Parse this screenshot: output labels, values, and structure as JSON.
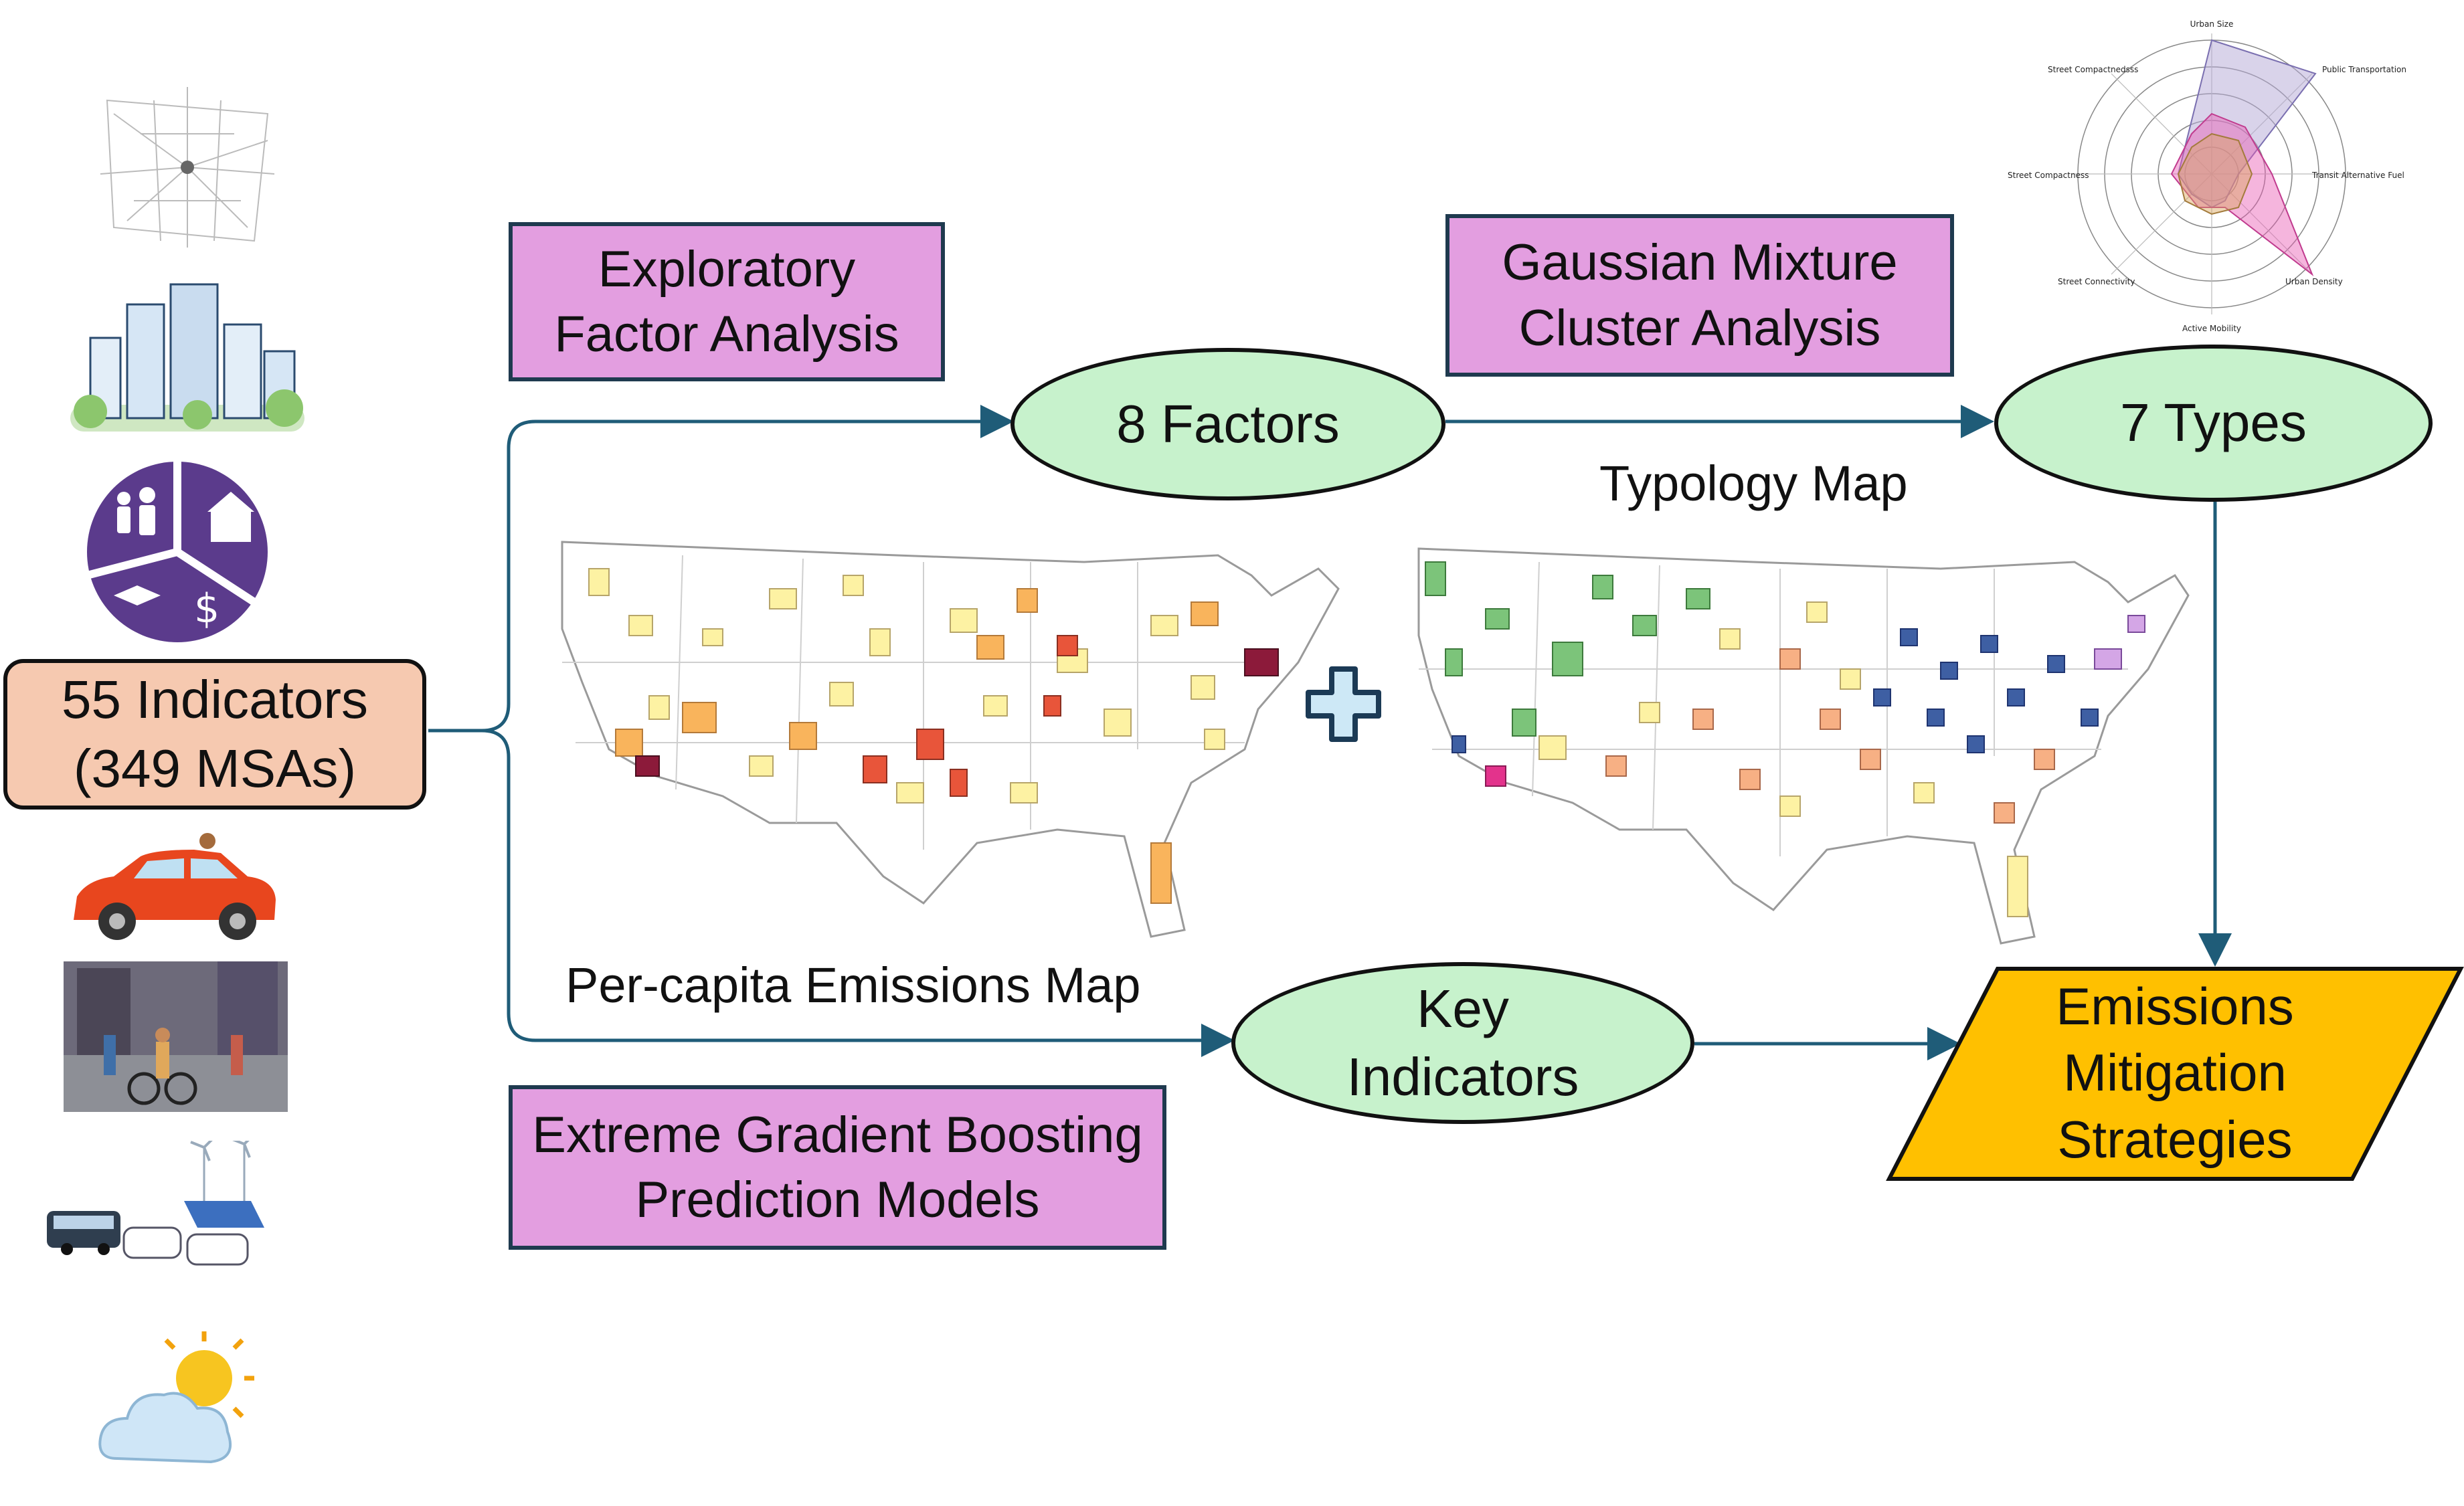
{
  "methods": {
    "efa": [
      "Exploratory",
      "Factor Analysis"
    ],
    "gmm": [
      "Gaussian Mixture",
      "Cluster Analysis"
    ],
    "xgb": [
      "Extreme Gradient Boosting",
      "Prediction Models"
    ]
  },
  "nodes": {
    "indicators": [
      "55 Indicators",
      "(349 MSAs)"
    ],
    "factors": "8 Factors",
    "types": "7 Types",
    "key_indicators": [
      "Key",
      "Indicators"
    ],
    "strategies": [
      "Emissions",
      "Mitigation",
      "Strategies"
    ]
  },
  "labels": {
    "typology_map": "Typology Map",
    "emissions_map": "Per-capita Emissions Map"
  },
  "radar": {
    "axes": [
      "Urban Size",
      "Public Transportation",
      "Transit Alternative Fuel",
      "Urban Density",
      "Active Mobility",
      "Street Connectivity",
      "Street Compactness",
      "Street Compactnedsss"
    ]
  },
  "colors": {
    "method_fill": "#e39ee0",
    "oval_fill": "#c7f2cc",
    "indicators_fill": "#f6c9b0",
    "strategies_fill": "#ffc000",
    "arrow": "#1f5c78"
  }
}
